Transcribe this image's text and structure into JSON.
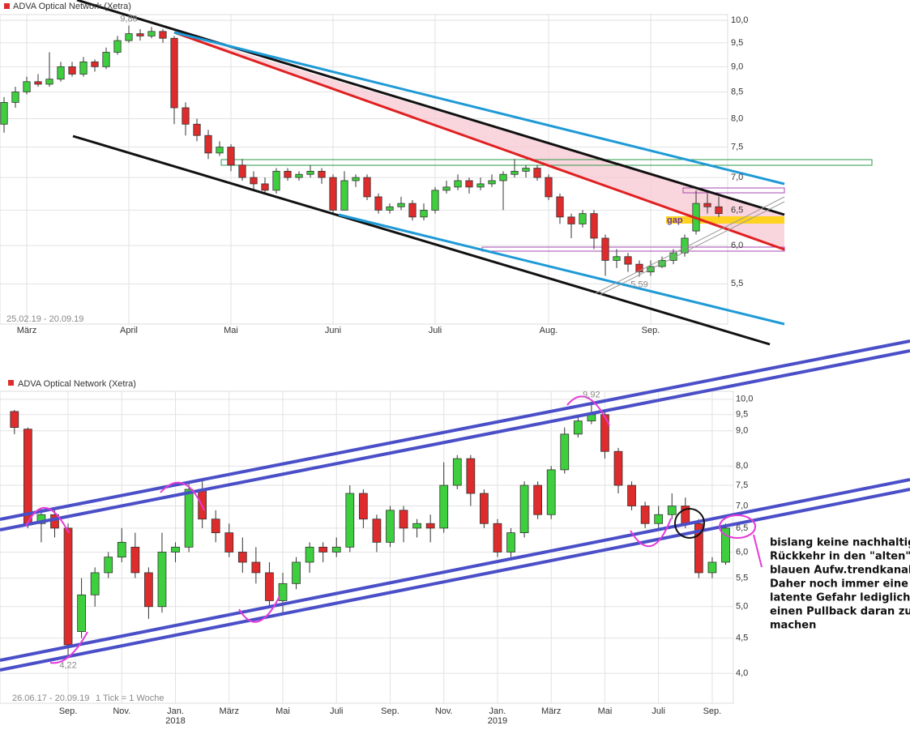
{
  "chart_data": [
    {
      "type": "candlestick",
      "title": "ADVA Optical Network (Xetra)",
      "period": "25.02.19 - 20.09.19",
      "categories": [
        null,
        null,
        "März",
        null,
        null,
        null,
        null,
        null,
        null,
        null,
        null,
        "April",
        null,
        null,
        null,
        null,
        null,
        null,
        null,
        null,
        "Mai",
        null,
        null,
        null,
        null,
        null,
        null,
        null,
        null,
        "Juni",
        null,
        null,
        null,
        null,
        null,
        null,
        null,
        null,
        "Juli",
        null,
        null,
        null,
        null,
        null,
        null,
        null,
        null,
        null,
        "Aug.",
        null,
        null,
        null,
        null,
        null,
        null,
        null,
        null,
        "Sep.",
        null,
        null,
        null,
        null,
        null,
        null
      ],
      "open": [
        7.9,
        8.3,
        8.5,
        8.7,
        8.65,
        8.75,
        9.0,
        8.85,
        9.1,
        9.0,
        9.3,
        9.55,
        9.7,
        9.65,
        9.75,
        9.6,
        8.2,
        7.9,
        7.7,
        7.4,
        7.5,
        7.2,
        7.0,
        6.9,
        6.8,
        7.1,
        7.0,
        7.05,
        7.1,
        7.0,
        6.5,
        6.95,
        7.0,
        6.7,
        6.5,
        6.55,
        6.6,
        6.4,
        6.5,
        6.8,
        6.85,
        6.95,
        6.85,
        6.9,
        6.95,
        7.05,
        7.1,
        7.15,
        7.0,
        6.7,
        6.4,
        6.3,
        6.45,
        6.1,
        5.8,
        5.85,
        5.75,
        5.65,
        5.72,
        5.8,
        5.9,
        6.2,
        6.6,
        6.55
      ],
      "high": [
        8.4,
        8.6,
        8.8,
        8.85,
        9.3,
        9.1,
        9.1,
        9.2,
        9.15,
        9.4,
        9.65,
        9.88,
        9.8,
        9.85,
        9.8,
        9.65,
        8.3,
        8.0,
        7.8,
        7.6,
        7.55,
        7.3,
        7.1,
        7.0,
        7.15,
        7.15,
        7.1,
        7.2,
        7.15,
        7.05,
        7.1,
        7.05,
        7.05,
        6.75,
        6.6,
        6.7,
        6.65,
        6.6,
        6.85,
        6.95,
        7.05,
        7.0,
        7.0,
        7.05,
        7.1,
        7.3,
        7.2,
        7.2,
        7.05,
        6.75,
        6.45,
        6.5,
        6.5,
        6.15,
        5.95,
        5.9,
        5.8,
        5.8,
        5.85,
        5.95,
        6.15,
        6.8,
        6.75,
        6.7
      ],
      "low": [
        7.75,
        8.2,
        8.45,
        8.6,
        8.6,
        8.7,
        8.8,
        8.8,
        8.9,
        8.95,
        9.25,
        9.5,
        9.55,
        9.6,
        9.5,
        7.9,
        7.7,
        7.6,
        7.3,
        7.35,
        7.1,
        6.95,
        6.8,
        6.75,
        6.75,
        6.95,
        6.95,
        7.0,
        6.9,
        6.45,
        6.5,
        6.85,
        6.65,
        6.45,
        6.45,
        6.5,
        6.35,
        6.35,
        6.45,
        6.75,
        6.8,
        6.75,
        6.8,
        6.85,
        6.5,
        7.0,
        7.0,
        6.95,
        6.65,
        6.3,
        6.1,
        6.25,
        5.95,
        5.6,
        5.7,
        5.65,
        5.59,
        5.6,
        5.7,
        5.75,
        5.85,
        6.15,
        6.45,
        6.4
      ],
      "close": [
        8.3,
        8.5,
        8.7,
        8.65,
        8.75,
        9.0,
        8.85,
        9.1,
        9.0,
        9.3,
        9.55,
        9.7,
        9.65,
        9.75,
        9.6,
        8.2,
        7.9,
        7.7,
        7.4,
        7.5,
        7.2,
        7.0,
        6.9,
        6.8,
        7.1,
        7.0,
        7.05,
        7.1,
        7.0,
        6.5,
        6.95,
        7.0,
        6.7,
        6.5,
        6.55,
        6.6,
        6.4,
        6.5,
        6.8,
        6.85,
        6.95,
        6.85,
        6.9,
        6.95,
        7.05,
        7.1,
        7.15,
        7.0,
        6.7,
        6.4,
        6.3,
        6.45,
        6.1,
        5.8,
        5.85,
        5.75,
        5.65,
        5.72,
        5.8,
        5.9,
        6.1,
        6.6,
        6.55,
        6.45
      ],
      "high_label": "9,88",
      "low_label": "5,59",
      "gap_label": "gap",
      "ylim": [
        5.02,
        10.13
      ],
      "log_scale": true,
      "grid": true,
      "up_color": "#3ecf3e",
      "down_color": "#de2b2b",
      "yticks": [
        {
          "value": 10,
          "label": "10,0"
        },
        {
          "value": 9.5,
          "label": "9,5"
        },
        {
          "value": 9,
          "label": "9,0"
        },
        {
          "value": 8.5,
          "label": "8,5"
        },
        {
          "value": 8,
          "label": "8,0"
        },
        {
          "value": 7.5,
          "label": "7,5"
        },
        {
          "value": 7,
          "label": "7,0"
        },
        {
          "value": 6.5,
          "label": "6,5"
        },
        {
          "value": 6,
          "label": "6,0"
        },
        {
          "value": 5.5,
          "label": "5,5"
        }
      ]
    },
    {
      "type": "candlestick",
      "title": "ADVA Optical Network (Xetra)",
      "period": "26.06.17 - 20.09.19",
      "tick_note": "1 Tick = 1 Woche",
      "categories": [
        null,
        null,
        null,
        null,
        "Sep.",
        null,
        null,
        null,
        "Nov.",
        null,
        null,
        null,
        "Jan.",
        null,
        null,
        null,
        "März",
        null,
        null,
        null,
        "Mai",
        null,
        null,
        null,
        "Juli",
        null,
        null,
        null,
        "Sep.",
        null,
        null,
        null,
        "Nov.",
        null,
        null,
        null,
        "Jan.",
        null,
        null,
        null,
        "März",
        null,
        null,
        null,
        "Mai",
        null,
        null,
        null,
        "Juli",
        null,
        null,
        null,
        "Sep.",
        null
      ],
      "x_sublabels": [
        null,
        null,
        null,
        null,
        null,
        null,
        null,
        null,
        null,
        null,
        null,
        null,
        "2018",
        null,
        null,
        null,
        null,
        null,
        null,
        null,
        null,
        null,
        null,
        null,
        null,
        null,
        null,
        null,
        null,
        null,
        null,
        null,
        null,
        null,
        null,
        null,
        "2019",
        null,
        null,
        null,
        null,
        null,
        null,
        null,
        null,
        null,
        null,
        null,
        null,
        null,
        null,
        null,
        null,
        null
      ],
      "open": [
        9.6,
        9.05,
        6.6,
        6.8,
        6.5,
        4.6,
        5.2,
        5.6,
        5.9,
        6.1,
        5.6,
        5.0,
        6.0,
        6.1,
        7.4,
        6.7,
        6.4,
        6.0,
        5.8,
        5.6,
        5.1,
        5.4,
        5.8,
        6.1,
        6.0,
        6.1,
        7.3,
        6.7,
        6.2,
        6.9,
        6.5,
        6.6,
        6.5,
        7.5,
        8.2,
        7.3,
        6.6,
        6.0,
        6.4,
        7.5,
        6.8,
        7.9,
        8.9,
        9.3,
        9.5,
        8.4,
        7.5,
        7.0,
        6.6,
        6.8,
        7.0,
        6.6,
        5.6,
        5.8
      ],
      "high": [
        9.65,
        9.1,
        6.95,
        6.9,
        6.6,
        5.5,
        5.7,
        6.0,
        6.5,
        6.4,
        5.7,
        6.4,
        6.2,
        7.6,
        7.6,
        6.9,
        6.6,
        6.3,
        6.1,
        5.8,
        5.6,
        5.9,
        6.2,
        6.2,
        6.3,
        7.5,
        7.4,
        6.8,
        7.0,
        7.0,
        6.7,
        6.8,
        8.1,
        8.3,
        8.3,
        7.4,
        6.7,
        6.5,
        7.6,
        7.6,
        8.0,
        9.1,
        9.5,
        9.92,
        9.6,
        8.5,
        7.6,
        7.1,
        7.0,
        7.3,
        7.2,
        6.7,
        5.9,
        6.6
      ],
      "low": [
        8.9,
        6.5,
        6.2,
        6.3,
        4.22,
        4.5,
        5.0,
        5.5,
        5.8,
        5.5,
        4.8,
        4.9,
        5.8,
        6.0,
        6.5,
        6.2,
        5.9,
        5.6,
        5.4,
        5.0,
        4.9,
        5.3,
        5.6,
        5.8,
        5.9,
        6.0,
        6.5,
        6.0,
        6.1,
        6.2,
        6.3,
        6.2,
        6.4,
        7.4,
        7.0,
        6.5,
        5.9,
        5.9,
        6.3,
        6.7,
        6.7,
        7.8,
        8.8,
        9.2,
        8.2,
        7.3,
        6.9,
        6.5,
        6.5,
        6.7,
        6.5,
        5.5,
        5.5,
        5.75
      ],
      "close": [
        9.1,
        6.6,
        6.8,
        6.5,
        4.4,
        5.2,
        5.6,
        5.9,
        6.2,
        5.6,
        5.0,
        6.0,
        6.1,
        7.4,
        6.7,
        6.4,
        6.0,
        5.8,
        5.6,
        5.1,
        5.4,
        5.8,
        6.1,
        6.0,
        6.1,
        7.3,
        6.7,
        6.2,
        6.9,
        6.5,
        6.6,
        6.5,
        7.5,
        8.2,
        7.3,
        6.6,
        6.0,
        6.4,
        7.5,
        6.8,
        7.9,
        8.9,
        9.3,
        9.5,
        8.4,
        7.5,
        7.0,
        6.6,
        6.8,
        7.0,
        6.6,
        5.6,
        5.8,
        6.5
      ],
      "high_label": "9,92",
      "low_label": "4,22",
      "ylim": [
        3.62,
        10.27
      ],
      "log_scale": true,
      "grid": true,
      "up_color": "#3ecf3e",
      "down_color": "#de2b2b",
      "yticks": [
        {
          "value": 10,
          "label": "10,0"
        },
        {
          "value": 9.5,
          "label": "9,5"
        },
        {
          "value": 9,
          "label": "9,0"
        },
        {
          "value": 8,
          "label": "8,0"
        },
        {
          "value": 7.5,
          "label": "7,5"
        },
        {
          "value": 7,
          "label": "7,0"
        },
        {
          "value": 6.5,
          "label": "6,5"
        },
        {
          "value": 6,
          "label": "6,0"
        },
        {
          "value": 5.5,
          "label": "5,5"
        },
        {
          "value": 5,
          "label": "5,0"
        },
        {
          "value": 4.5,
          "label": "4,5"
        },
        {
          "value": 4,
          "label": "4,0"
        }
      ],
      "note": [
        "bislang keine nachhaltige",
        "Rückkehr in den \"alten\"",
        "blauen Aufw.trendkanal.",
        "Daher noch immer eine",
        "latente Gefahr lediglich",
        "einen Pullback daran zu",
        "machen"
      ]
    }
  ]
}
